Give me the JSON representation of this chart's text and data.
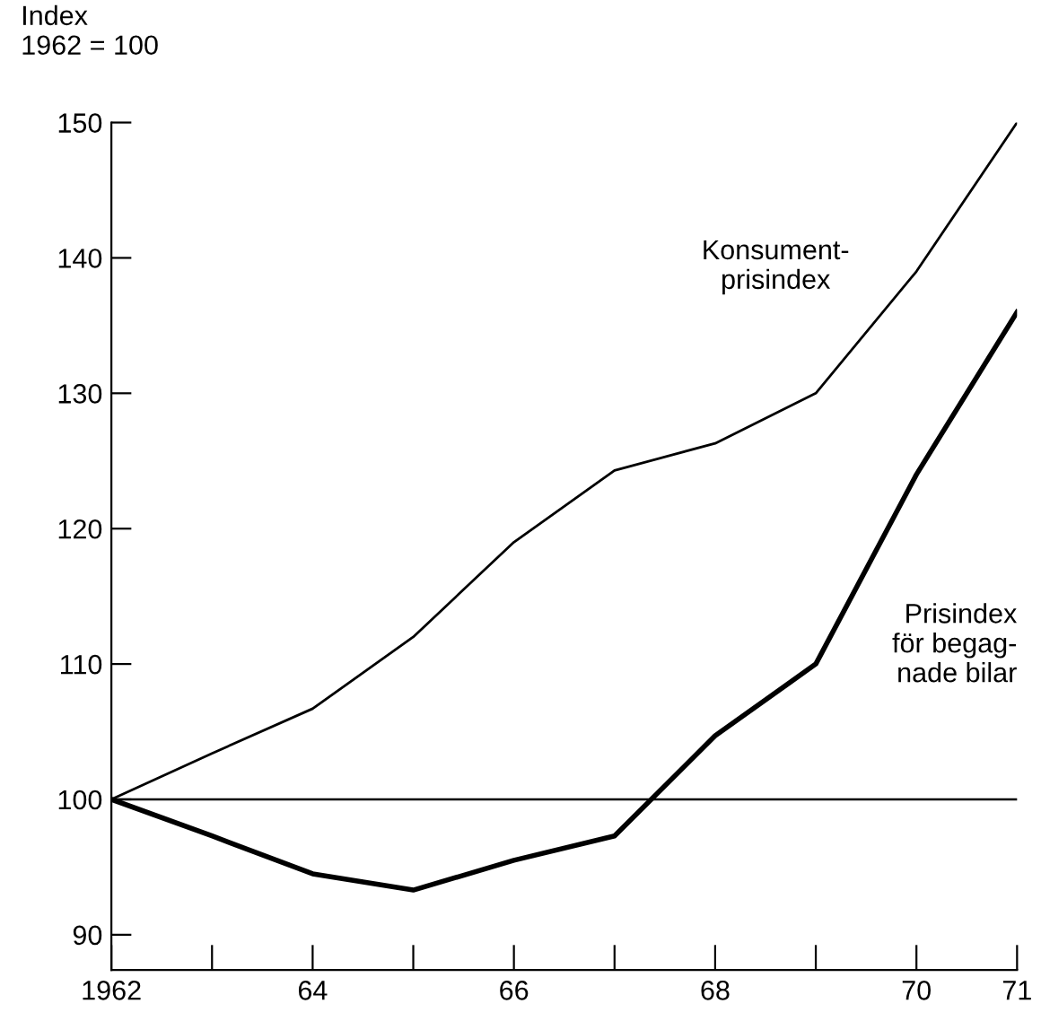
{
  "chart_data": {
    "type": "line",
    "ylabel": "Index\n1962 = 100",
    "x": [
      1962,
      1963,
      1964,
      1965,
      1966,
      1967,
      1968,
      1969,
      1970,
      1971
    ],
    "series": [
      {
        "name": "Konsument-\nprisindex",
        "color": "#000000",
        "values": [
          100,
          103.4,
          106.7,
          112,
          119,
          124.3,
          126.3,
          130,
          139,
          150
        ]
      },
      {
        "name": "Prisindex\nför begag-\nnade bilar",
        "color": "#000000",
        "values": [
          100,
          97.3,
          94.5,
          93.3,
          95.5,
          97.3,
          104.7,
          110,
          124,
          136
        ]
      }
    ],
    "xlim": [
      1962,
      1971
    ],
    "ylim": [
      87.4,
      150
    ],
    "xticks": [
      {
        "value": 1962,
        "label": "1962"
      },
      {
        "value": 1963,
        "label": null
      },
      {
        "value": 1964,
        "label": "64"
      },
      {
        "value": 1965,
        "label": null
      },
      {
        "value": 1966,
        "label": "66"
      },
      {
        "value": 1967,
        "label": null
      },
      {
        "value": 1968,
        "label": "68"
      },
      {
        "value": 1969,
        "label": null
      },
      {
        "value": 1970,
        "label": "70"
      },
      {
        "value": 1971,
        "label": "71"
      }
    ],
    "yticks": [
      90,
      100,
      110,
      120,
      130,
      140,
      150
    ],
    "ref_lines": [
      {
        "axis": "y",
        "value": 100,
        "label": null,
        "color": "#000000"
      }
    ],
    "grid": false,
    "legend": false
  }
}
